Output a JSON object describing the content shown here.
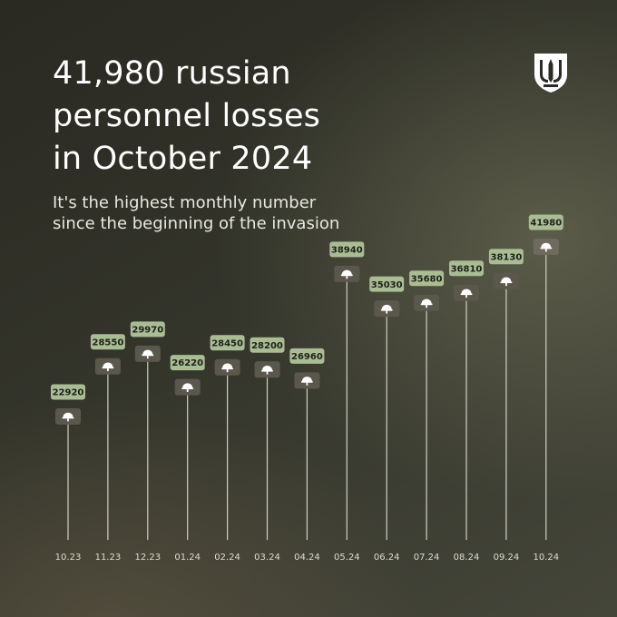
{
  "headline": {
    "lines": [
      "41,980 russian",
      "personnel losses",
      "in October 2024"
    ]
  },
  "subhead": {
    "lines": [
      "It's the highest monthly number",
      "since the beginning of the invasion"
    ]
  },
  "icons": {
    "emblem": "trident-emblem-icon",
    "marker": "helmet-icon"
  },
  "colors": {
    "value_box": "#a9bc94",
    "icon_box": "#5b574c",
    "highlight_icon_box": "#6e6a5e",
    "stem": "#cfcfc6"
  },
  "chart_data": {
    "type": "lollipop",
    "categories": [
      "10.23",
      "11.23",
      "12.23",
      "01.24",
      "02.24",
      "03.24",
      "04.24",
      "05.24",
      "06.24",
      "07.24",
      "08.24",
      "09.24",
      "10.24"
    ],
    "values": [
      22920,
      28550,
      29970,
      26220,
      28450,
      28200,
      26960,
      38940,
      35030,
      35680,
      36810,
      38130,
      41980
    ],
    "title": "41,980 russian personnel losses in October 2024",
    "xlabel": "",
    "ylabel": "",
    "grid": false,
    "legend": "none"
  }
}
